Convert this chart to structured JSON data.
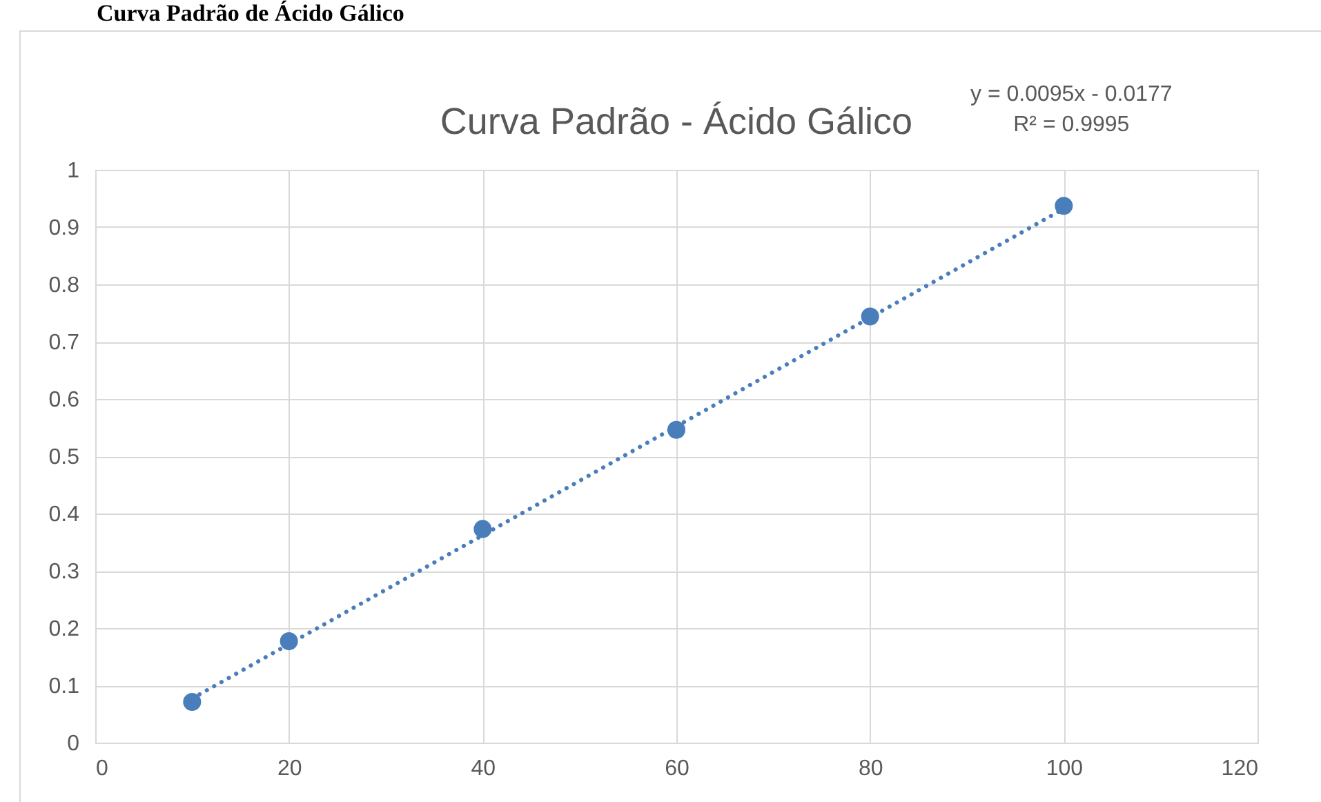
{
  "chart_data": {
    "type": "scatter",
    "title": "Curva Padrão - Ácido Gálico",
    "annotations": [
      "Curva Padrão de Ácido Gálico",
      "y = 0.0095x - 0.0177",
      "R² = 0.9995"
    ],
    "x": [
      10,
      20,
      40,
      60,
      80,
      100
    ],
    "series": [
      {
        "color": "#4a7ebb",
        "values": [
          0.071,
          0.177,
          0.373,
          0.546,
          0.744,
          0.937
        ],
        "marker": "circle"
      },
      {
        "type": "line",
        "color": "#4a7ebb",
        "x": [
          10,
          100
        ],
        "values": [
          0.077,
          0.932
        ],
        "line_style": "dotted"
      }
    ],
    "xlim": [
      0,
      120
    ],
    "xticks": [
      0,
      20,
      40,
      60,
      80,
      100,
      120
    ],
    "ylim": [
      0,
      1
    ],
    "yticks": [
      0,
      0.1,
      0.2,
      0.3,
      0.4,
      0.5,
      0.6,
      0.7,
      0.8,
      0.9,
      1
    ],
    "grid": true
  }
}
